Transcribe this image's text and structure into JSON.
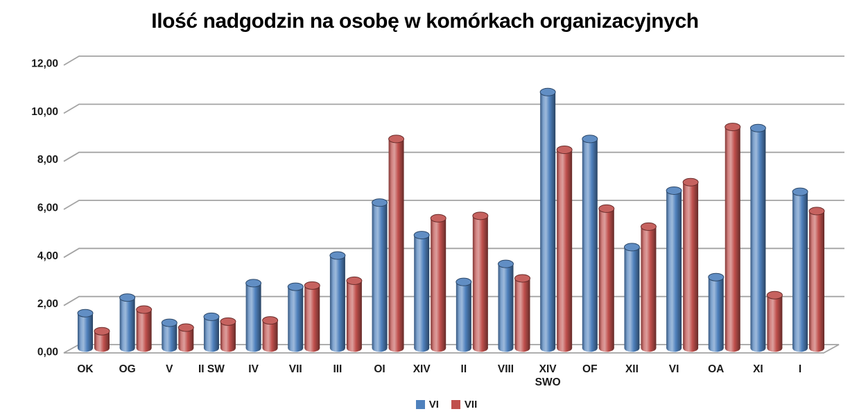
{
  "title": "Ilość nadgodzin na osobę w komórkach organizacyjnych",
  "chart_data": {
    "type": "bar",
    "style": "3d-cylinder",
    "title": "Ilość nadgodzin na osobę w komórkach organizacyjnych",
    "xlabel": "",
    "ylabel": "",
    "ylim": [
      0,
      12
    ],
    "grid": true,
    "legend_position": "bottom",
    "gridline_color": "#a3a3a3",
    "y_ticks": [
      "0,00",
      "2,00",
      "4,00",
      "6,00",
      "8,00",
      "10,00",
      "12,00"
    ],
    "categories": [
      "OK",
      "OG",
      "V",
      "II SW",
      "IV",
      "VII",
      "III",
      "OI",
      "XIV",
      "II",
      "VIII",
      "XIV SWO",
      "OF",
      "XII",
      "VI",
      "OA",
      "XI",
      "I"
    ],
    "two_line_labels": [
      "XIV SWO"
    ],
    "series": [
      {
        "name": "VI",
        "color": "#4f81bd",
        "values": [
          1.45,
          2.1,
          1.05,
          1.3,
          2.7,
          2.55,
          3.85,
          6.05,
          4.7,
          2.75,
          3.5,
          10.65,
          8.7,
          4.2,
          6.55,
          2.95,
          9.15,
          6.5
        ]
      },
      {
        "name": "VII",
        "color": "#c0504d",
        "values": [
          0.7,
          1.6,
          0.85,
          1.1,
          1.15,
          2.6,
          2.8,
          8.7,
          5.4,
          5.5,
          2.9,
          8.25,
          5.8,
          5.05,
          6.9,
          9.2,
          2.2,
          5.7
        ]
      }
    ]
  }
}
